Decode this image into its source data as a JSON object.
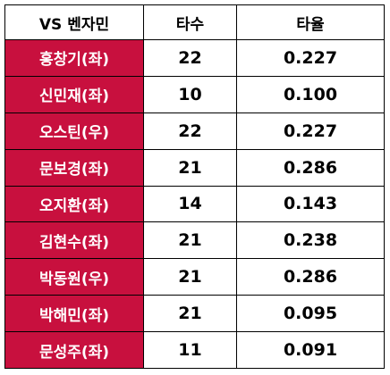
{
  "table": {
    "headers": [
      "VS 벤자민",
      "타수",
      "타율"
    ],
    "accent_color": "#c8103e",
    "rows": [
      {
        "player": "홍창기(좌)",
        "at_bats": "22",
        "avg": "0.227"
      },
      {
        "player": "신민재(좌)",
        "at_bats": "10",
        "avg": "0.100"
      },
      {
        "player": "오스틴(우)",
        "at_bats": "22",
        "avg": "0.227"
      },
      {
        "player": "문보경(좌)",
        "at_bats": "21",
        "avg": "0.286"
      },
      {
        "player": "오지환(좌)",
        "at_bats": "14",
        "avg": "0.143"
      },
      {
        "player": "김현수(좌)",
        "at_bats": "21",
        "avg": "0.238"
      },
      {
        "player": "박동원(우)",
        "at_bats": "21",
        "avg": "0.286"
      },
      {
        "player": "박해민(좌)",
        "at_bats": "21",
        "avg": "0.095"
      },
      {
        "player": "문성주(좌)",
        "at_bats": "11",
        "avg": "0.091"
      }
    ]
  }
}
